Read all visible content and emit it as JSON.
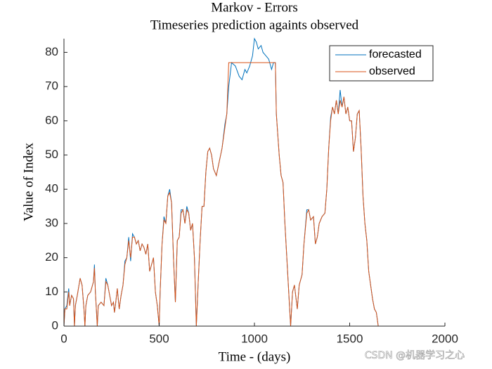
{
  "chart_data": {
    "type": "line",
    "title": "Markov - Errors",
    "subtitle": "Timeseries prediction againts observed",
    "x_label": "Time - (days)",
    "y_label": "Value of Index",
    "watermark": "CSDN @机器学习之心",
    "xlim": [
      0,
      2000
    ],
    "xticks": [
      0,
      500,
      1000,
      1500,
      2000
    ],
    "ylim": [
      0,
      84
    ],
    "yticks": [
      0,
      10,
      20,
      30,
      40,
      50,
      60,
      70,
      80
    ],
    "legend": "northeast",
    "series": [
      {
        "name": "forecasted",
        "color": "#0072BD",
        "x": [
          0,
          5,
          15,
          25,
          30,
          40,
          50,
          55,
          60,
          70,
          85,
          95,
          105,
          110,
          115,
          125,
          140,
          155,
          160,
          165,
          170,
          175,
          180,
          195,
          210,
          220,
          230,
          240,
          250,
          260,
          265,
          270,
          280,
          290,
          300,
          310,
          320,
          330,
          340,
          350,
          360,
          370,
          380,
          390,
          400,
          410,
          420,
          430,
          440,
          450,
          460,
          470,
          480,
          490,
          500,
          505,
          515,
          525,
          535,
          545,
          555,
          565,
          575,
          585,
          595,
          605,
          615,
          625,
          635,
          645,
          655,
          665,
          675,
          685,
          695,
          705,
          715,
          725,
          735,
          745,
          755,
          765,
          775,
          785,
          800,
          815,
          830,
          845,
          855,
          865,
          880,
          900,
          920,
          935,
          950,
          960,
          975,
          990,
          1000,
          1010,
          1020,
          1035,
          1045,
          1060,
          1075,
          1090,
          1100,
          1110,
          1115,
          1130,
          1140,
          1150,
          1160,
          1170,
          1180,
          1190,
          1200,
          1210,
          1225,
          1235,
          1250,
          1260,
          1275,
          1285,
          1295,
          1310,
          1320,
          1330,
          1340,
          1355,
          1370,
          1380,
          1390,
          1400,
          1410,
          1420,
          1430,
          1440,
          1450,
          1460,
          1470,
          1480,
          1490,
          1500,
          1510,
          1520,
          1530,
          1540,
          1550,
          1560,
          1570,
          1580,
          1590,
          1600,
          1610,
          1620,
          1630,
          1640,
          1650
        ],
        "values": [
          0,
          5,
          6,
          11,
          6,
          9,
          8,
          0,
          6,
          9,
          14,
          12,
          5,
          0,
          6,
          9,
          10,
          13,
          18,
          10,
          5,
          0,
          6,
          7,
          6,
          14,
          12,
          9,
          6,
          7,
          4,
          6,
          11,
          5,
          9,
          12,
          19,
          20,
          26,
          19,
          27,
          26,
          24,
          25,
          22,
          24,
          23,
          21,
          24,
          16,
          18,
          20,
          10,
          6,
          0,
          10,
          24,
          32,
          30,
          38,
          40,
          36,
          20,
          7,
          25,
          26,
          34,
          34,
          30,
          35,
          33,
          28,
          30,
          20,
          0,
          13,
          25,
          35,
          35,
          45,
          51,
          52,
          50,
          46,
          44,
          48,
          52,
          59,
          62,
          70,
          77,
          76,
          73,
          72,
          75,
          74,
          76,
          79,
          84,
          83,
          81,
          82,
          80,
          79,
          78,
          75,
          77,
          77,
          62,
          50,
          44,
          42,
          30,
          20,
          10,
          0,
          10,
          12,
          5,
          12,
          15,
          24,
          34,
          34,
          31,
          32,
          24,
          26,
          30,
          32,
          33,
          40,
          52,
          61,
          64,
          62,
          66,
          62,
          69,
          64,
          67,
          62,
          64,
          60,
          60,
          51,
          55,
          62,
          63,
          52,
          38,
          30,
          25,
          16,
          12,
          8,
          5,
          4,
          0
        ]
      },
      {
        "name": "observed",
        "color": "#D95319",
        "x": [
          0,
          5,
          15,
          25,
          30,
          40,
          50,
          55,
          60,
          70,
          85,
          95,
          105,
          110,
          115,
          125,
          140,
          155,
          160,
          165,
          170,
          175,
          180,
          195,
          210,
          220,
          230,
          240,
          250,
          260,
          265,
          270,
          280,
          290,
          300,
          310,
          320,
          330,
          340,
          350,
          360,
          370,
          380,
          390,
          400,
          410,
          420,
          430,
          440,
          450,
          460,
          470,
          480,
          490,
          500,
          505,
          515,
          525,
          535,
          545,
          555,
          565,
          575,
          585,
          595,
          605,
          615,
          625,
          635,
          645,
          655,
          665,
          675,
          685,
          695,
          705,
          715,
          725,
          735,
          745,
          755,
          765,
          775,
          785,
          800,
          815,
          830,
          845,
          855,
          865,
          880,
          1000,
          1110,
          1115,
          1130,
          1140,
          1150,
          1160,
          1170,
          1180,
          1190,
          1200,
          1210,
          1225,
          1235,
          1250,
          1260,
          1275,
          1285,
          1295,
          1310,
          1320,
          1330,
          1340,
          1355,
          1370,
          1380,
          1390,
          1400,
          1410,
          1420,
          1430,
          1440,
          1450,
          1460,
          1470,
          1480,
          1490,
          1500,
          1510,
          1520,
          1530,
          1540,
          1550,
          1560,
          1570,
          1580,
          1590,
          1600,
          1610,
          1620,
          1630,
          1640,
          1650
        ],
        "values": [
          0,
          5,
          5,
          10,
          6,
          9,
          8,
          0,
          6,
          9,
          14,
          12,
          5,
          0,
          6,
          9,
          10,
          13,
          17,
          10,
          5,
          0,
          6,
          7,
          6,
          13,
          12,
          9,
          6,
          7,
          4,
          6,
          11,
          5,
          9,
          12,
          18,
          20,
          25,
          20,
          26,
          26,
          24,
          25,
          22,
          24,
          23,
          21,
          24,
          16,
          18,
          20,
          10,
          6,
          0,
          10,
          24,
          31,
          30,
          38,
          39,
          36,
          20,
          7,
          25,
          26,
          33,
          34,
          30,
          34,
          33,
          28,
          30,
          20,
          0,
          13,
          25,
          35,
          35,
          45,
          51,
          52,
          50,
          46,
          44,
          48,
          52,
          58,
          62,
          77,
          77,
          77,
          77,
          62,
          50,
          44,
          42,
          30,
          20,
          10,
          0,
          10,
          12,
          5,
          12,
          15,
          24,
          33,
          34,
          31,
          32,
          24,
          26,
          30,
          32,
          33,
          40,
          52,
          60,
          64,
          62,
          66,
          62,
          66,
          64,
          67,
          62,
          64,
          60,
          60,
          51,
          55,
          62,
          63,
          52,
          38,
          30,
          25,
          16,
          12,
          8,
          5,
          4,
          0
        ]
      }
    ]
  }
}
